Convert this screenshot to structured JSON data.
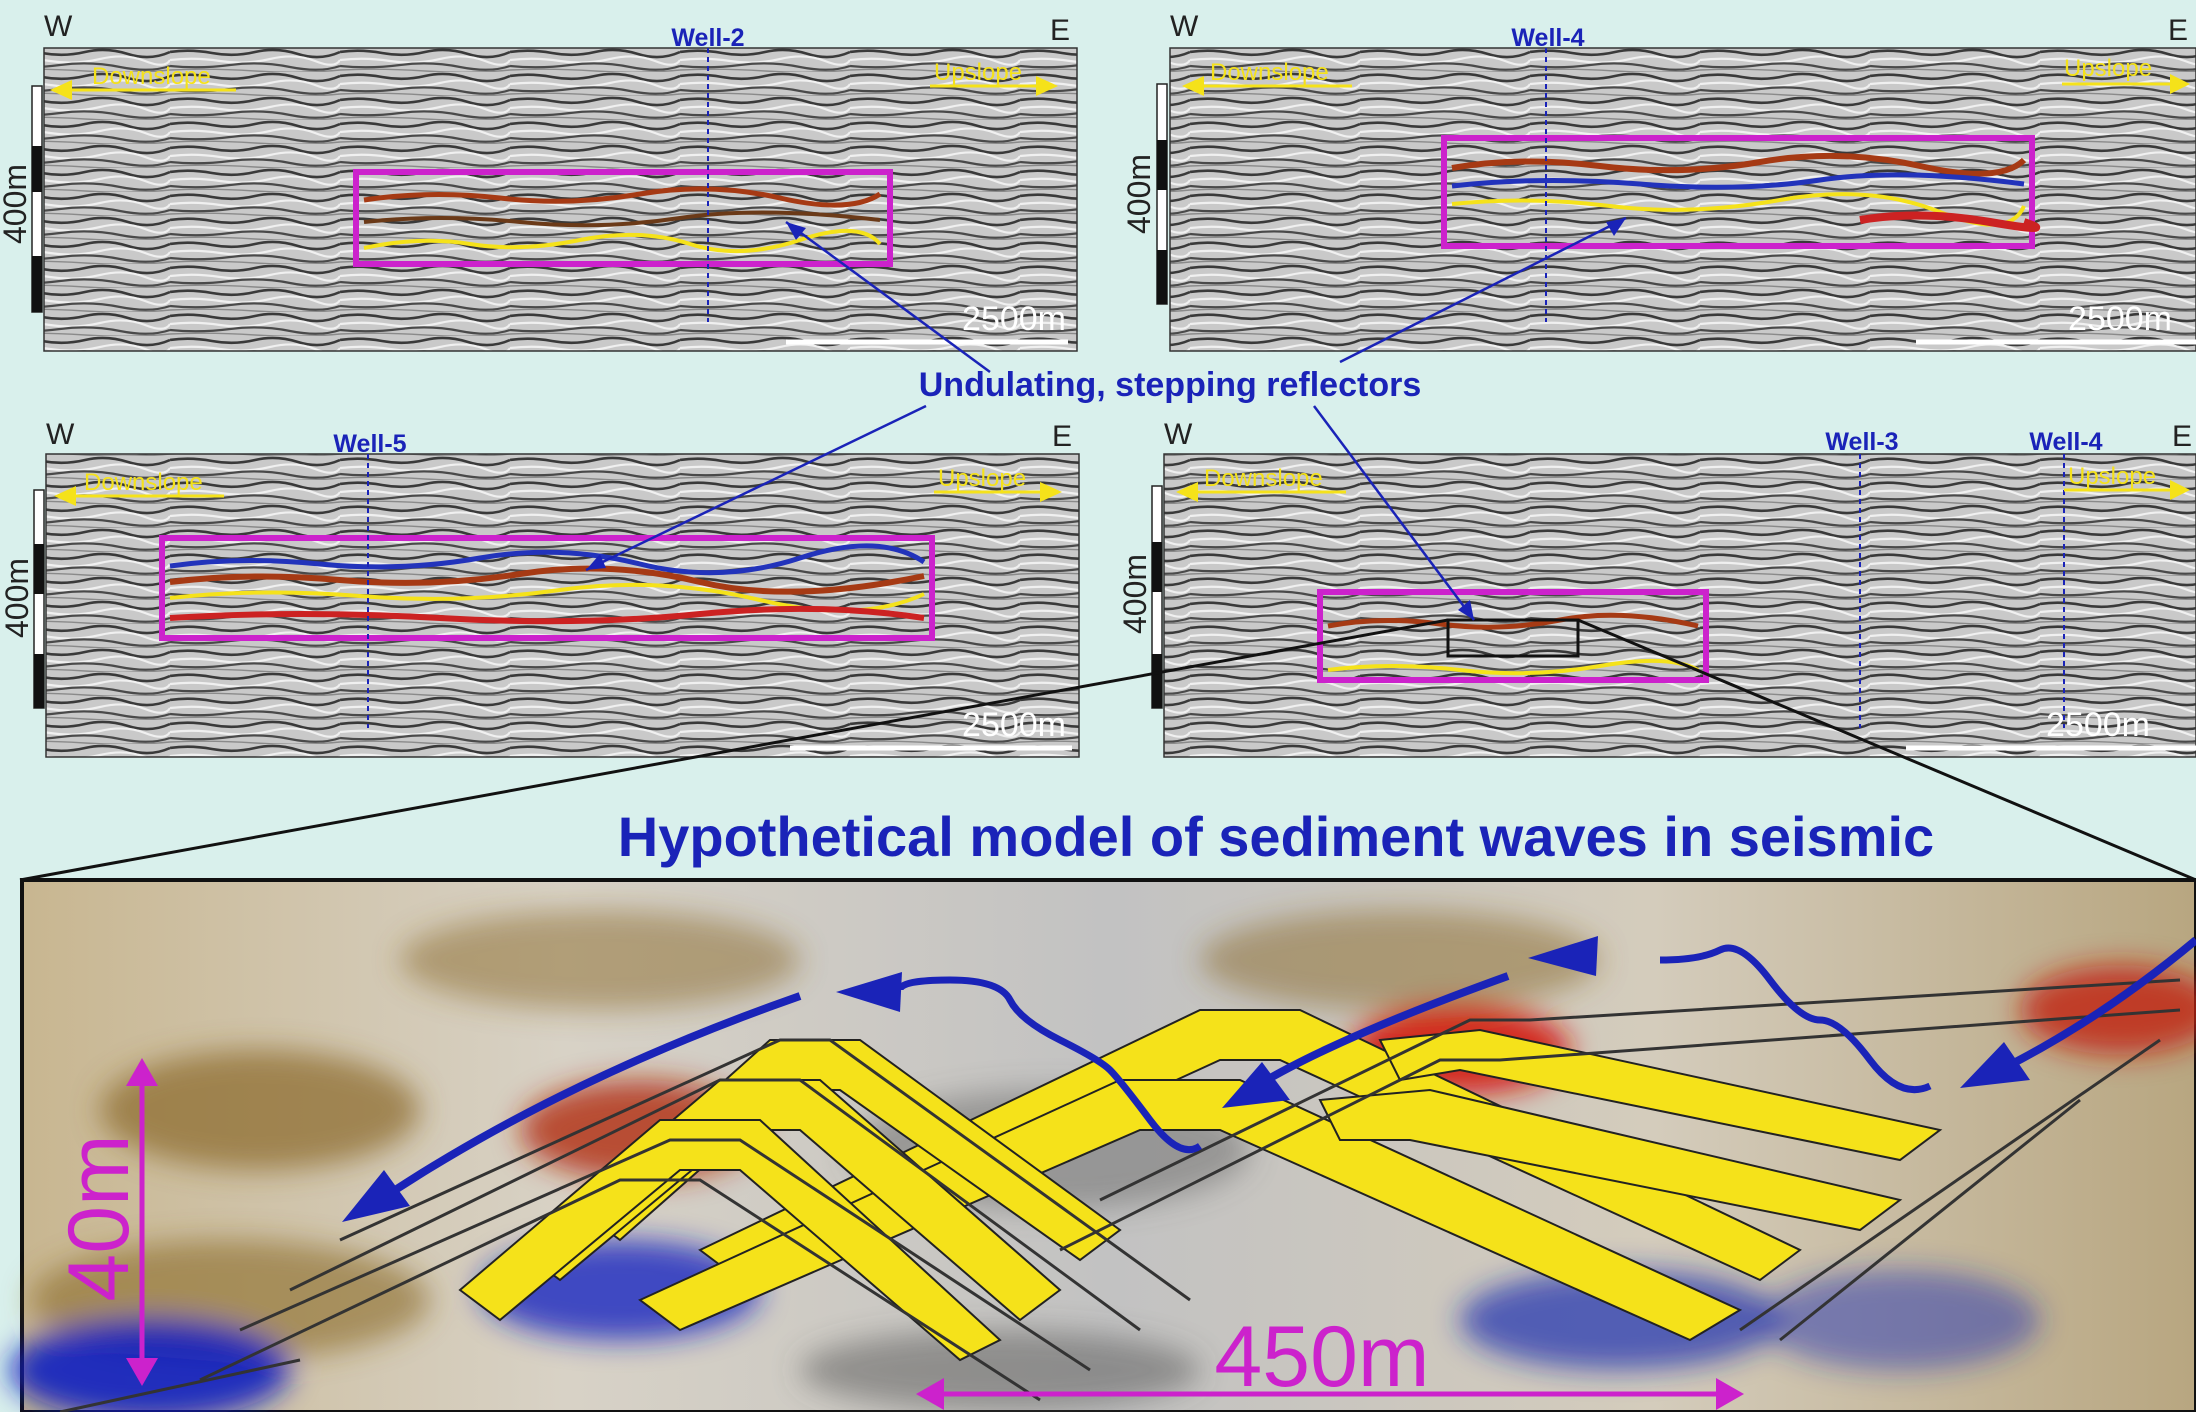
{
  "panels": [
    {
      "id": "p1",
      "west": "W",
      "east": "E",
      "downslope": "Downslope",
      "upslope": "Upslope",
      "scale_bar": "2500m",
      "thickness": "400m",
      "wells": [
        "Well-2"
      ]
    },
    {
      "id": "p2",
      "west": "W",
      "east": "E",
      "downslope": "Downslope",
      "upslope": "Upslope",
      "scale_bar": "2500m",
      "thickness": "400m",
      "wells": [
        "Well-4"
      ]
    },
    {
      "id": "p3",
      "west": "W",
      "east": "E",
      "downslope": "Downslope",
      "upslope": "Upslope",
      "scale_bar": "2500m",
      "thickness": "400m",
      "wells": [
        "Well-5"
      ]
    },
    {
      "id": "p4",
      "west": "W",
      "east": "E",
      "downslope": "Downslope",
      "upslope": "Upslope",
      "scale_bar": "2500m",
      "thickness": "400m",
      "wells": [
        "Well-3",
        "Well-4"
      ]
    }
  ],
  "annotation": "Undulating, stepping reflectors",
  "model": {
    "title": "Hypothetical model of sediment waves in seismic",
    "height_label": "40m",
    "width_label": "450m"
  },
  "colors": {
    "background": "#d9f0ec",
    "label_blue": "#1a23b8",
    "box_magenta": "#cc22cc",
    "reflector_yellow": "#f5e21a"
  }
}
